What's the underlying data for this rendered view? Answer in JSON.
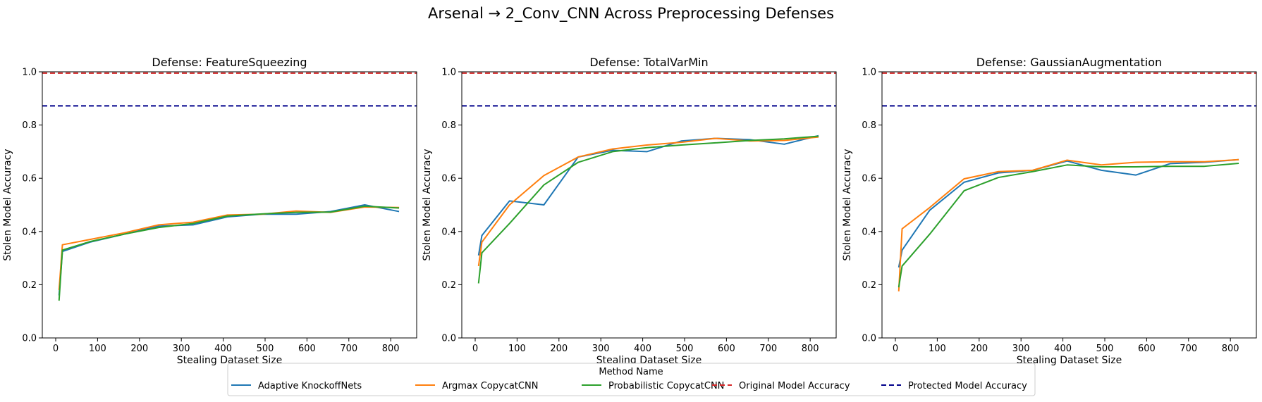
{
  "suptitle": "Arsenal → 2_Conv_CNN Across Preprocessing Defenses",
  "legend": {
    "title": "Method Name",
    "entries": [
      {
        "label": "Adaptive KnockoffNets",
        "color": "#1f77b4",
        "style": "solid"
      },
      {
        "label": "Argmax CopycatCNN",
        "color": "#ff7f0e",
        "style": "solid"
      },
      {
        "label": "Probabilistic CopycatCNN",
        "color": "#2ca02c",
        "style": "solid"
      },
      {
        "label": "Original Model Accuracy",
        "color": "#d62728",
        "style": "dashed"
      },
      {
        "label": "Protected Model Accuracy",
        "color": "#00008b",
        "style": "dashed"
      }
    ]
  },
  "chart_data": [
    {
      "type": "line",
      "title": "Defense: FeatureSqueezing",
      "xlabel": "Stealing Dataset Size",
      "ylabel": "Stolen Model Accuracy",
      "xlim": [
        -32,
        862
      ],
      "ylim": [
        0,
        1.0
      ],
      "xticks": [
        0,
        100,
        200,
        300,
        400,
        500,
        600,
        700,
        800
      ],
      "yticks": [
        0.0,
        0.2,
        0.4,
        0.6,
        0.8,
        1.0
      ],
      "hlines": [
        {
          "name": "Original Model Accuracy",
          "y": 0.995
        },
        {
          "name": "Protected Model Accuracy",
          "y": 0.872
        }
      ],
      "series": [
        {
          "name": "Adaptive KnockoffNets",
          "x": [
            8,
            16,
            82,
            164,
            246,
            328,
            410,
            492,
            574,
            656,
            738,
            820
          ],
          "y": [
            0.16,
            0.325,
            0.36,
            0.39,
            0.42,
            0.425,
            0.455,
            0.465,
            0.465,
            0.475,
            0.5,
            0.475
          ]
        },
        {
          "name": "Argmax CopycatCNN",
          "x": [
            8,
            16,
            82,
            164,
            246,
            328,
            410,
            492,
            574,
            656,
            738,
            820
          ],
          "y": [
            0.18,
            0.35,
            0.37,
            0.395,
            0.425,
            0.435,
            0.462,
            0.465,
            0.477,
            0.472,
            0.492,
            0.49
          ]
        },
        {
          "name": "Probabilistic CopycatCNN",
          "x": [
            8,
            16,
            82,
            164,
            246,
            328,
            410,
            492,
            574,
            656,
            738,
            820
          ],
          "y": [
            0.14,
            0.33,
            0.362,
            0.39,
            0.415,
            0.43,
            0.458,
            0.466,
            0.472,
            0.473,
            0.495,
            0.488
          ]
        }
      ]
    },
    {
      "type": "line",
      "title": "Defense: TotalVarMin",
      "xlabel": "Stealing Dataset Size",
      "ylabel": "Stolen Model Accuracy",
      "xlim": [
        -32,
        862
      ],
      "ylim": [
        0,
        1.0
      ],
      "xticks": [
        0,
        100,
        200,
        300,
        400,
        500,
        600,
        700,
        800
      ],
      "yticks": [
        0.0,
        0.2,
        0.4,
        0.6,
        0.8,
        1.0
      ],
      "hlines": [
        {
          "name": "Original Model Accuracy",
          "y": 0.995
        },
        {
          "name": "Protected Model Accuracy",
          "y": 0.872
        }
      ],
      "series": [
        {
          "name": "Adaptive KnockoffNets",
          "x": [
            8,
            16,
            82,
            164,
            246,
            328,
            410,
            492,
            574,
            656,
            738,
            820
          ],
          "y": [
            0.31,
            0.385,
            0.515,
            0.5,
            0.68,
            0.705,
            0.7,
            0.74,
            0.75,
            0.745,
            0.728,
            0.76
          ]
        },
        {
          "name": "Argmax CopycatCNN",
          "x": [
            8,
            16,
            82,
            164,
            246,
            328,
            410,
            492,
            574,
            656,
            738,
            820
          ],
          "y": [
            0.27,
            0.36,
            0.5,
            0.61,
            0.68,
            0.71,
            0.725,
            0.735,
            0.75,
            0.74,
            0.742,
            0.755
          ]
        },
        {
          "name": "Probabilistic CopycatCNN",
          "x": [
            8,
            16,
            82,
            164,
            246,
            328,
            410,
            492,
            574,
            656,
            738,
            820
          ],
          "y": [
            0.205,
            0.32,
            0.43,
            0.575,
            0.66,
            0.7,
            0.715,
            0.725,
            0.733,
            0.742,
            0.748,
            0.758
          ]
        }
      ]
    },
    {
      "type": "line",
      "title": "Defense: GaussianAugmentation",
      "xlabel": "Stealing Dataset Size",
      "ylabel": "Stolen Model Accuracy",
      "xlim": [
        -32,
        862
      ],
      "ylim": [
        0,
        1.0
      ],
      "xticks": [
        0,
        100,
        200,
        300,
        400,
        500,
        600,
        700,
        800
      ],
      "yticks": [
        0.0,
        0.2,
        0.4,
        0.6,
        0.8,
        1.0
      ],
      "hlines": [
        {
          "name": "Original Model Accuracy",
          "y": 0.995
        },
        {
          "name": "Protected Model Accuracy",
          "y": 0.872
        }
      ],
      "series": [
        {
          "name": "Adaptive KnockoffNets",
          "x": [
            8,
            16,
            82,
            164,
            246,
            328,
            410,
            492,
            574,
            656,
            738,
            820
          ],
          "y": [
            0.265,
            0.33,
            0.48,
            0.585,
            0.62,
            0.63,
            0.665,
            0.63,
            0.612,
            0.655,
            0.66,
            0.67
          ]
        },
        {
          "name": "Argmax CopycatCNN",
          "x": [
            8,
            16,
            82,
            164,
            246,
            328,
            410,
            492,
            574,
            656,
            738,
            820
          ],
          "y": [
            0.175,
            0.41,
            0.49,
            0.598,
            0.625,
            0.63,
            0.668,
            0.65,
            0.66,
            0.662,
            0.662,
            0.67
          ]
        },
        {
          "name": "Probabilistic CopycatCNN",
          "x": [
            8,
            16,
            82,
            164,
            246,
            328,
            410,
            492,
            574,
            656,
            738,
            820
          ],
          "y": [
            0.19,
            0.27,
            0.39,
            0.553,
            0.603,
            0.625,
            0.65,
            0.643,
            0.643,
            0.645,
            0.645,
            0.656
          ]
        }
      ]
    }
  ]
}
